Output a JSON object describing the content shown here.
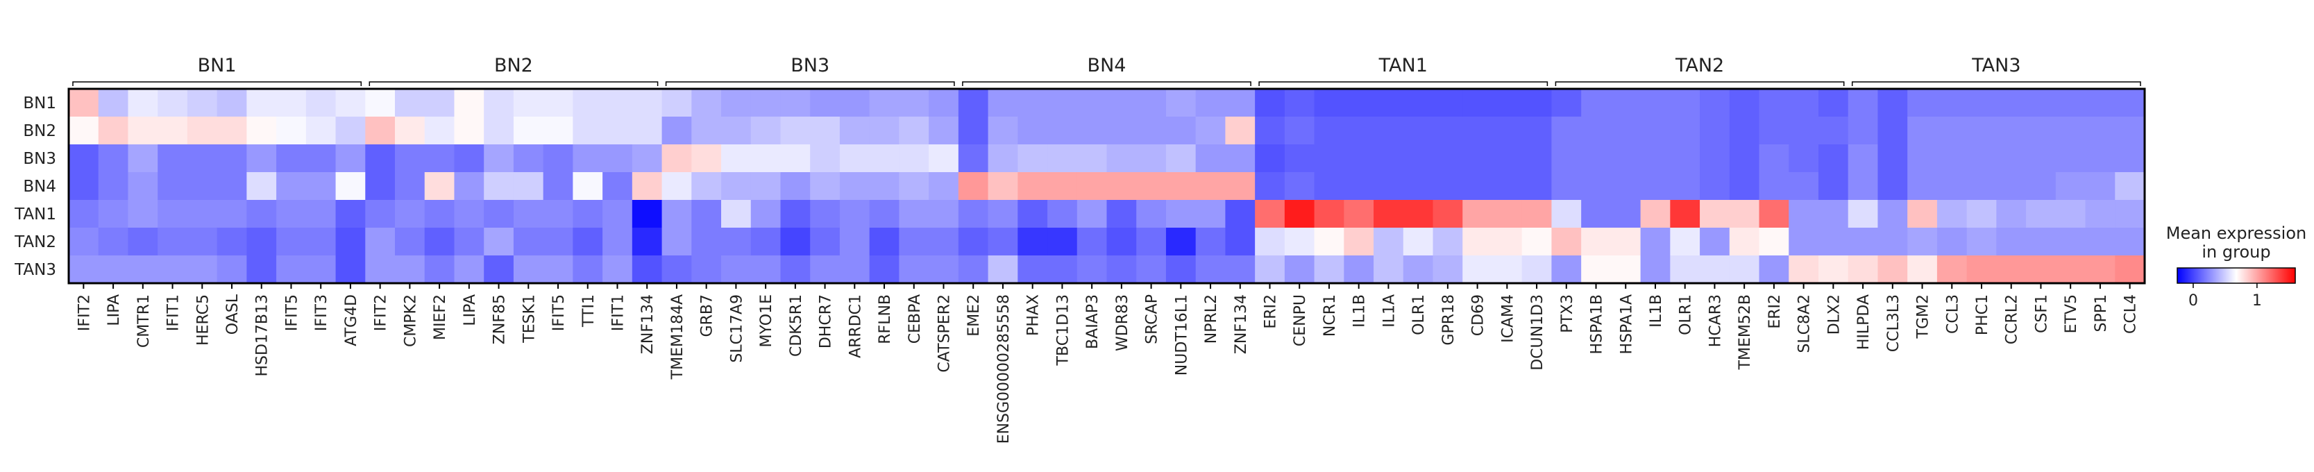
{
  "chart_data": {
    "type": "heatmap",
    "rows": [
      "BN1",
      "BN2",
      "BN3",
      "BN4",
      "TAN1",
      "TAN2",
      "TAN3"
    ],
    "groups": [
      {
        "name": "BN1",
        "genes": [
          "IFIT2",
          "LIPA",
          "CMTR1",
          "IFIT1",
          "HERC5",
          "OASL",
          "HSD17B13",
          "IFIT5",
          "IFIT3",
          "ATG4D"
        ]
      },
      {
        "name": "BN2",
        "genes": [
          "IFIT2",
          "CMPK2",
          "MIEF2",
          "LIPA",
          "ZNF85",
          "TESK1",
          "IFIT5",
          "TTI1",
          "IFIT1",
          "ZNF134"
        ]
      },
      {
        "name": "BN3",
        "genes": [
          "TMEM184A",
          "GRB7",
          "SLC17A9",
          "MYO1E",
          "CDK5R1",
          "DHCR7",
          "ARRDC1",
          "RFLNB",
          "CEBPA",
          "CATSPER2"
        ]
      },
      {
        "name": "BN4",
        "genes": [
          "EME2",
          "ENSG00000285558",
          "PHAX",
          "TBC1D13",
          "BAIAP3",
          "WDR83",
          "SRCAP",
          "NUDT16L1",
          "NPRL2",
          "ZNF134"
        ]
      },
      {
        "name": "TAN1",
        "genes": [
          "ERI2",
          "CENPU",
          "NCR1",
          "IL1B",
          "IL1A",
          "OLR1",
          "GPR18",
          "CD69",
          "ICAM4",
          "DCUN1D3"
        ]
      },
      {
        "name": "TAN2",
        "genes": [
          "PTX3",
          "HSPA1B",
          "HSPA1A",
          "IL1B",
          "OLR1",
          "HCAR3",
          "TMEM52B",
          "ERI2",
          "SLC8A2",
          "DLX2"
        ]
      },
      {
        "name": "TAN3",
        "genes": [
          "HILPDA",
          "CCL3L3",
          "TGM2",
          "CCL3",
          "PHC1",
          "CCRL2",
          "CSF1",
          "ETV5",
          "SPP1",
          "CCL4"
        ]
      }
    ],
    "values": [
      [
        0.9,
        0.45,
        0.6,
        0.55,
        0.5,
        0.45,
        0.6,
        0.6,
        0.55,
        0.6,
        0.65,
        0.5,
        0.5,
        0.7,
        0.55,
        0.6,
        0.6,
        0.55,
        0.55,
        0.55,
        0.5,
        0.4,
        0.35,
        0.35,
        0.35,
        0.3,
        0.3,
        0.35,
        0.35,
        0.3,
        0.1,
        0.3,
        0.3,
        0.3,
        0.3,
        0.3,
        0.3,
        0.35,
        0.3,
        0.3,
        0.05,
        0.1,
        0.05,
        0.05,
        0.05,
        0.05,
        0.05,
        0.05,
        0.05,
        0.05,
        0.1,
        0.2,
        0.2,
        0.2,
        0.2,
        0.15,
        0.1,
        0.15,
        0.15,
        0.1,
        0.2,
        0.1,
        0.2,
        0.2,
        0.2,
        0.2,
        0.2,
        0.2,
        0.2,
        0.2
      ],
      [
        0.7,
        0.85,
        0.75,
        0.75,
        0.8,
        0.8,
        0.7,
        0.65,
        0.6,
        0.5,
        0.9,
        0.75,
        0.6,
        0.7,
        0.55,
        0.65,
        0.65,
        0.55,
        0.55,
        0.55,
        0.3,
        0.4,
        0.4,
        0.45,
        0.5,
        0.5,
        0.4,
        0.4,
        0.45,
        0.35,
        0.1,
        0.35,
        0.3,
        0.3,
        0.3,
        0.3,
        0.3,
        0.3,
        0.35,
        0.85,
        0.1,
        0.15,
        0.1,
        0.1,
        0.1,
        0.1,
        0.1,
        0.1,
        0.1,
        0.1,
        0.2,
        0.2,
        0.2,
        0.2,
        0.2,
        0.15,
        0.1,
        0.15,
        0.15,
        0.15,
        0.2,
        0.1,
        0.25,
        0.25,
        0.25,
        0.25,
        0.25,
        0.25,
        0.25,
        0.25
      ],
      [
        0.1,
        0.2,
        0.35,
        0.2,
        0.2,
        0.2,
        0.3,
        0.2,
        0.2,
        0.3,
        0.1,
        0.2,
        0.2,
        0.15,
        0.35,
        0.25,
        0.2,
        0.3,
        0.3,
        0.35,
        0.85,
        0.8,
        0.6,
        0.6,
        0.6,
        0.5,
        0.55,
        0.55,
        0.55,
        0.6,
        0.15,
        0.4,
        0.45,
        0.45,
        0.45,
        0.4,
        0.4,
        0.45,
        0.3,
        0.3,
        0.05,
        0.1,
        0.1,
        0.1,
        0.1,
        0.1,
        0.1,
        0.1,
        0.1,
        0.1,
        0.2,
        0.2,
        0.2,
        0.2,
        0.2,
        0.15,
        0.1,
        0.2,
        0.15,
        0.1,
        0.25,
        0.1,
        0.25,
        0.25,
        0.25,
        0.25,
        0.25,
        0.25,
        0.25,
        0.25
      ],
      [
        0.1,
        0.2,
        0.3,
        0.2,
        0.2,
        0.2,
        0.55,
        0.3,
        0.3,
        0.65,
        0.1,
        0.2,
        0.8,
        0.3,
        0.5,
        0.5,
        0.2,
        0.65,
        0.2,
        0.85,
        0.6,
        0.45,
        0.4,
        0.4,
        0.3,
        0.4,
        0.35,
        0.35,
        0.4,
        0.35,
        1.05,
        0.9,
        1.0,
        1.0,
        1.0,
        1.0,
        1.0,
        1.0,
        1.0,
        1.0,
        0.1,
        0.15,
        0.1,
        0.1,
        0.1,
        0.1,
        0.1,
        0.1,
        0.1,
        0.1,
        0.2,
        0.2,
        0.2,
        0.2,
        0.2,
        0.15,
        0.1,
        0.2,
        0.2,
        0.1,
        0.25,
        0.1,
        0.25,
        0.25,
        0.25,
        0.25,
        0.25,
        0.3,
        0.3,
        0.45
      ],
      [
        0.2,
        0.25,
        0.3,
        0.25,
        0.25,
        0.25,
        0.2,
        0.25,
        0.25,
        0.1,
        0.2,
        0.25,
        0.2,
        0.25,
        0.2,
        0.25,
        0.25,
        0.2,
        0.25,
        -0.2,
        0.3,
        0.2,
        0.55,
        0.3,
        0.1,
        0.2,
        0.25,
        0.2,
        0.3,
        0.3,
        0.2,
        0.25,
        0.1,
        0.2,
        0.3,
        0.1,
        0.25,
        0.3,
        0.3,
        0.05,
        1.2,
        1.5,
        1.3,
        1.2,
        1.4,
        1.4,
        1.3,
        1.0,
        1.0,
        1.0,
        0.55,
        0.2,
        0.2,
        0.9,
        1.4,
        0.85,
        0.85,
        1.2,
        0.3,
        0.3,
        0.55,
        0.3,
        0.9,
        0.4,
        0.45,
        0.35,
        0.4,
        0.4,
        0.35,
        0.35
      ],
      [
        0.25,
        0.2,
        0.15,
        0.2,
        0.2,
        0.15,
        0.1,
        0.2,
        0.2,
        0.05,
        0.3,
        0.2,
        0.1,
        0.2,
        0.35,
        0.2,
        0.2,
        0.1,
        0.25,
        -0.1,
        0.3,
        0.2,
        0.2,
        0.15,
        0.0,
        0.15,
        0.25,
        0.05,
        0.2,
        0.2,
        0.1,
        0.15,
        -0.05,
        -0.05,
        0.15,
        0.05,
        0.15,
        -0.1,
        0.15,
        0.05,
        0.55,
        0.6,
        0.7,
        0.85,
        0.45,
        0.6,
        0.45,
        0.75,
        0.75,
        0.7,
        0.9,
        0.75,
        0.75,
        0.3,
        0.6,
        0.3,
        0.75,
        0.7,
        0.3,
        0.3,
        0.3,
        0.3,
        0.35,
        0.3,
        0.35,
        0.3,
        0.3,
        0.3,
        0.3,
        0.3
      ],
      [
        0.3,
        0.3,
        0.3,
        0.3,
        0.3,
        0.25,
        0.1,
        0.25,
        0.25,
        0.05,
        0.3,
        0.3,
        0.2,
        0.3,
        0.1,
        0.3,
        0.3,
        0.2,
        0.3,
        0.05,
        0.15,
        0.2,
        0.25,
        0.25,
        0.15,
        0.25,
        0.25,
        0.1,
        0.25,
        0.25,
        0.2,
        0.45,
        0.15,
        0.15,
        0.2,
        0.15,
        0.2,
        0.1,
        0.2,
        0.2,
        0.45,
        0.3,
        0.45,
        0.3,
        0.45,
        0.35,
        0.4,
        0.6,
        0.6,
        0.55,
        0.3,
        0.7,
        0.7,
        0.3,
        0.55,
        0.55,
        0.55,
        0.3,
        0.8,
        0.75,
        0.8,
        0.9,
        0.75,
        1.0,
        1.05,
        1.05,
        1.05,
        1.05,
        1.05,
        1.1
      ]
    ],
    "colormap": "bwr",
    "colorbar": {
      "label": "Mean expression in group",
      "ticks": [
        0,
        1
      ],
      "range": [
        -0.25,
        1.6
      ]
    }
  }
}
